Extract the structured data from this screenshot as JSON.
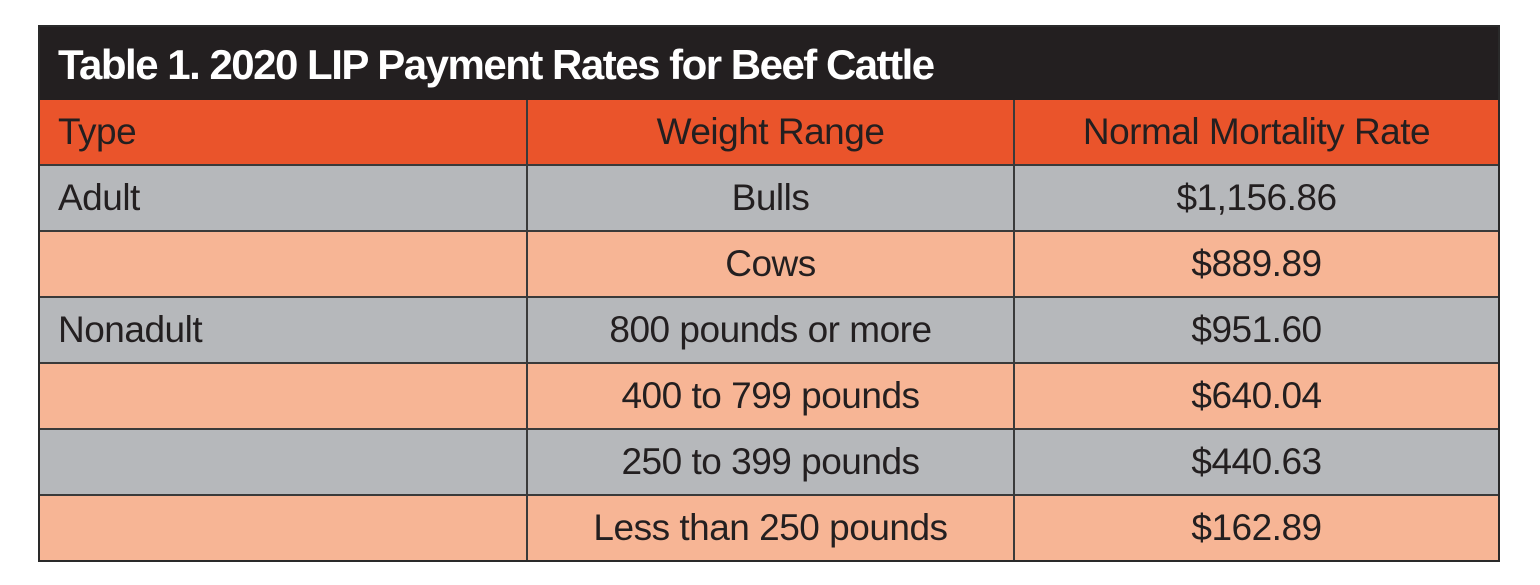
{
  "header": {
    "title": "Table 1. 2020 LIP Payment Rates for Beef Cattle"
  },
  "table": {
    "columns": [
      "Type",
      "Weight Range",
      "Normal Mortality Rate"
    ],
    "rows": [
      [
        "Adult",
        "Bulls",
        "$1,156.86"
      ],
      [
        null,
        "Cows",
        "$889.89"
      ],
      [
        "Nonadult",
        "800 pounds or more",
        "$951.60"
      ],
      [
        null,
        "400 to 799 pounds",
        "$640.04"
      ],
      [
        null,
        "250 to 399 pounds",
        "$440.63"
      ],
      [
        null,
        "Less than 250 pounds",
        "$162.89"
      ]
    ]
  }
}
